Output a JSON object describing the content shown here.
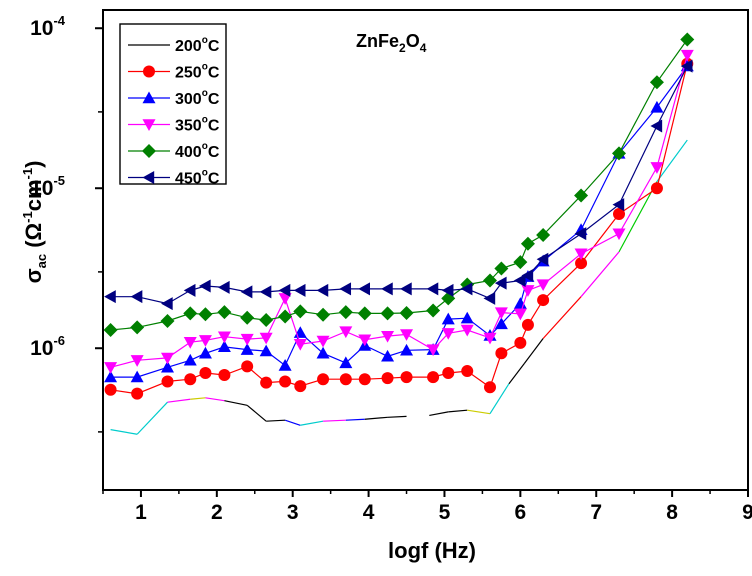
{
  "chart_data": {
    "type": "line",
    "title": {
      "base": "ZnFe",
      "sub1": "2",
      "mid": "O",
      "sub2": "4"
    },
    "xlabel": "logf (Hz)",
    "ylabel": {
      "base": "σ",
      "sub": "ac",
      "open": " (Ω",
      "sup1": "-1",
      "mid": "cm",
      "sup2": "-1",
      "close": ")"
    },
    "xlim": [
      0.5,
      9
    ],
    "ylim": [
      0.13,
      130
    ],
    "yscale": "log",
    "xticks": [
      "1",
      "2",
      "3",
      "4",
      "5",
      "6",
      "7",
      "8",
      "9"
    ],
    "yticks": [
      {
        "value": 1,
        "base": "10",
        "exp": "-6"
      },
      {
        "value": 10,
        "base": "10",
        "exp": "-5"
      },
      {
        "value": 100,
        "base": "10",
        "exp": "-4"
      }
    ],
    "y_unit_note": "y values in units of 1e-6",
    "legend_position": "top-left",
    "series": [
      {
        "name": "200°C",
        "label": "200",
        "unit": "C",
        "deg": "o",
        "color": "#000000",
        "marker": "none",
        "x": [
          0.6,
          0.95,
          1.35,
          1.65,
          1.85,
          2.1,
          2.4,
          2.65,
          2.9,
          3.1,
          3.4,
          3.7,
          3.95,
          4.25,
          4.5,
          4.8,
          5.05,
          5.3,
          5.6,
          5.85,
          6.05,
          6.3,
          6.8,
          7.3,
          7.8,
          8.2
        ],
        "y": [
          0.31,
          0.29,
          0.46,
          0.48,
          0.49,
          0.47,
          0.44,
          0.35,
          0.355,
          0.33,
          0.35,
          0.355,
          0.36,
          0.37,
          0.375,
          0.38,
          0.4,
          0.41,
          0.39,
          0.6,
          0.8,
          1.15,
          2.1,
          4.0,
          11.0,
          20.0
        ],
        "gap_after_index": 14,
        "segment_colors": [
          "#00cccc",
          "#00cccc",
          "#ff00ff",
          "#cccc00",
          "#ff00ff",
          "#000000",
          "#000000",
          "#000000",
          "#0000ff",
          "#00cccc",
          "#ff00ff",
          "#0000ff",
          "#000000",
          "#000000",
          "#000000",
          "#000000",
          "#000000",
          "#cccc00",
          "#00cccc",
          "#000000",
          "#000000",
          "#ff0000",
          "#ff00ff",
          "#00cc00",
          "#00cccc"
        ]
      },
      {
        "name": "250°C",
        "label": "250",
        "unit": "C",
        "deg": "o",
        "color": "#ff0000",
        "marker": "circle",
        "x": [
          0.6,
          0.95,
          1.35,
          1.65,
          1.85,
          2.1,
          2.4,
          2.65,
          2.9,
          3.1,
          3.4,
          3.7,
          3.95,
          4.25,
          4.5,
          4.85,
          5.05,
          5.3,
          5.6,
          5.75,
          6.0,
          6.1,
          6.3,
          6.8,
          7.3,
          7.8,
          8.2
        ],
        "y": [
          0.55,
          0.52,
          0.62,
          0.64,
          0.7,
          0.68,
          0.77,
          0.61,
          0.62,
          0.58,
          0.64,
          0.64,
          0.64,
          0.65,
          0.66,
          0.66,
          0.7,
          0.72,
          0.57,
          0.93,
          1.08,
          1.4,
          2.0,
          3.4,
          6.9,
          10.0,
          60.0
        ]
      },
      {
        "name": "300°C",
        "label": "300",
        "unit": "C",
        "deg": "o",
        "color": "#0000ff",
        "marker": "triangle-up",
        "x": [
          0.6,
          0.95,
          1.35,
          1.65,
          1.85,
          2.1,
          2.4,
          2.65,
          2.9,
          3.1,
          3.4,
          3.7,
          3.95,
          4.25,
          4.5,
          4.85,
          5.05,
          5.3,
          5.6,
          5.75,
          6.0,
          6.1,
          6.3,
          6.8,
          7.3,
          7.8,
          8.2
        ],
        "y": [
          0.66,
          0.66,
          0.76,
          0.84,
          0.93,
          1.02,
          0.98,
          0.96,
          0.78,
          1.25,
          0.93,
          0.81,
          1.04,
          0.89,
          0.97,
          0.98,
          1.52,
          1.54,
          1.2,
          1.42,
          1.9,
          2.8,
          3.5,
          5.5,
          16.5,
          32.0,
          58.0
        ]
      },
      {
        "name": "350°C",
        "label": "350",
        "unit": "C",
        "deg": "o",
        "color": "#ff00ff",
        "marker": "triangle-down",
        "x": [
          0.6,
          0.95,
          1.35,
          1.65,
          1.85,
          2.1,
          2.4,
          2.65,
          2.9,
          3.1,
          3.4,
          3.7,
          3.95,
          4.25,
          4.5,
          4.85,
          5.05,
          5.3,
          5.6,
          5.75,
          6.0,
          6.1,
          6.3,
          6.8,
          7.3,
          7.8,
          8.2
        ],
        "y": [
          0.76,
          0.84,
          0.87,
          1.09,
          1.12,
          1.18,
          1.14,
          1.16,
          2.05,
          1.06,
          1.11,
          1.27,
          1.13,
          1.19,
          1.22,
          0.98,
          1.24,
          1.3,
          1.16,
          1.67,
          1.64,
          2.3,
          2.5,
          3.9,
          5.2,
          13.5,
          68.0
        ]
      },
      {
        "name": "400°C",
        "label": "400",
        "unit": "C",
        "deg": "o",
        "color": "#008000",
        "marker": "diamond",
        "x": [
          0.6,
          0.95,
          1.35,
          1.65,
          1.85,
          2.1,
          2.4,
          2.65,
          2.9,
          3.1,
          3.4,
          3.7,
          3.95,
          4.25,
          4.5,
          4.85,
          5.05,
          5.3,
          5.6,
          5.75,
          6.0,
          6.1,
          6.3,
          6.8,
          7.3,
          7.8,
          8.2
        ],
        "y": [
          1.3,
          1.35,
          1.48,
          1.65,
          1.63,
          1.68,
          1.55,
          1.5,
          1.58,
          1.7,
          1.62,
          1.68,
          1.65,
          1.65,
          1.66,
          1.72,
          2.05,
          2.5,
          2.65,
          3.15,
          3.45,
          4.5,
          5.1,
          9.0,
          16.5,
          46.0,
          85.0
        ]
      },
      {
        "name": "450°C",
        "label": "450",
        "unit": "C",
        "deg": "o",
        "color": "#000080",
        "marker": "triangle-left",
        "x": [
          0.6,
          0.95,
          1.35,
          1.65,
          1.85,
          2.1,
          2.4,
          2.65,
          2.9,
          3.1,
          3.4,
          3.7,
          3.95,
          4.25,
          4.5,
          4.85,
          5.05,
          5.3,
          5.6,
          5.75,
          6.0,
          6.1,
          6.3,
          6.8,
          7.3,
          7.8,
          8.2
        ],
        "y": [
          2.1,
          2.1,
          1.9,
          2.3,
          2.45,
          2.4,
          2.25,
          2.25,
          2.3,
          2.3,
          2.3,
          2.35,
          2.35,
          2.35,
          2.35,
          2.35,
          2.3,
          2.35,
          2.05,
          2.55,
          2.65,
          2.85,
          3.6,
          5.2,
          7.9,
          24.5,
          58.0
        ]
      }
    ]
  }
}
